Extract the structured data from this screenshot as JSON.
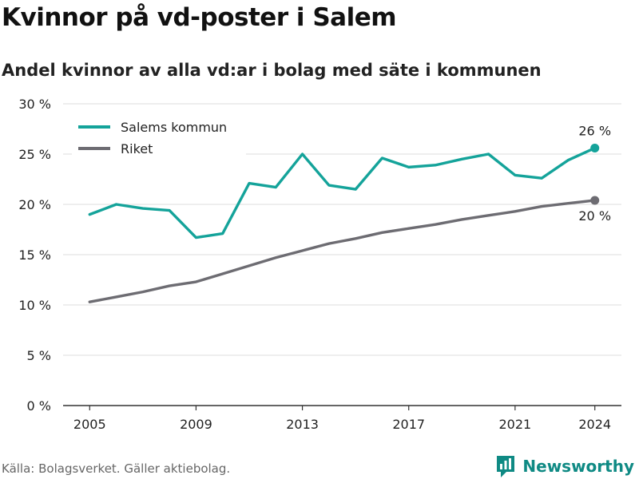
{
  "title": "Kvinnor på vd-poster i Salem",
  "subtitle": "Andel kvinnor av alla vd:ar i bolag med säte i kommunen",
  "source": "Källa: Bolagsverket. Gäller aktiebolag.",
  "brand": {
    "name": "Newsworthy",
    "icon": "newsworthy-logo-icon"
  },
  "colors": {
    "salem": "#14a39a",
    "riket": "#6d6c72",
    "grid": "#dddddd",
    "axis": "#333333"
  },
  "chart_data": {
    "type": "line",
    "title": "",
    "xlabel": "",
    "ylabel": "",
    "x": [
      2005,
      2006,
      2007,
      2008,
      2009,
      2010,
      2011,
      2012,
      2013,
      2014,
      2015,
      2016,
      2017,
      2018,
      2019,
      2020,
      2021,
      2022,
      2023,
      2024
    ],
    "x_ticks": [
      2005,
      2009,
      2013,
      2017,
      2021,
      2024
    ],
    "x_tick_labels": [
      "2005",
      "2009",
      "2013",
      "2017",
      "2021",
      "2024"
    ],
    "xlim": [
      2004,
      2025
    ],
    "ylim": [
      0,
      30
    ],
    "y_ticks": [
      0,
      5,
      10,
      15,
      20,
      25,
      30
    ],
    "y_tick_labels": [
      "0 %",
      "5 %",
      "10 %",
      "15 %",
      "20 %",
      "25 %",
      "30 %"
    ],
    "grid": true,
    "legend_position": "top-left",
    "series": [
      {
        "name": "Salems kommun",
        "color": "#14a39a",
        "values": [
          19.0,
          20.0,
          19.6,
          19.4,
          16.7,
          17.1,
          22.1,
          21.7,
          25.0,
          21.9,
          21.5,
          24.6,
          23.7,
          23.9,
          24.5,
          25.0,
          22.9,
          22.6,
          24.4,
          25.6
        ],
        "end_label": "26 %",
        "end_label_position": "above"
      },
      {
        "name": "Riket",
        "color": "#6d6c72",
        "values": [
          10.3,
          10.8,
          11.3,
          11.9,
          12.3,
          13.1,
          13.9,
          14.7,
          15.4,
          16.1,
          16.6,
          17.2,
          17.6,
          18.0,
          18.5,
          18.9,
          19.3,
          19.8,
          20.1,
          20.4
        ],
        "end_label": "20 %",
        "end_label_position": "below"
      }
    ]
  }
}
